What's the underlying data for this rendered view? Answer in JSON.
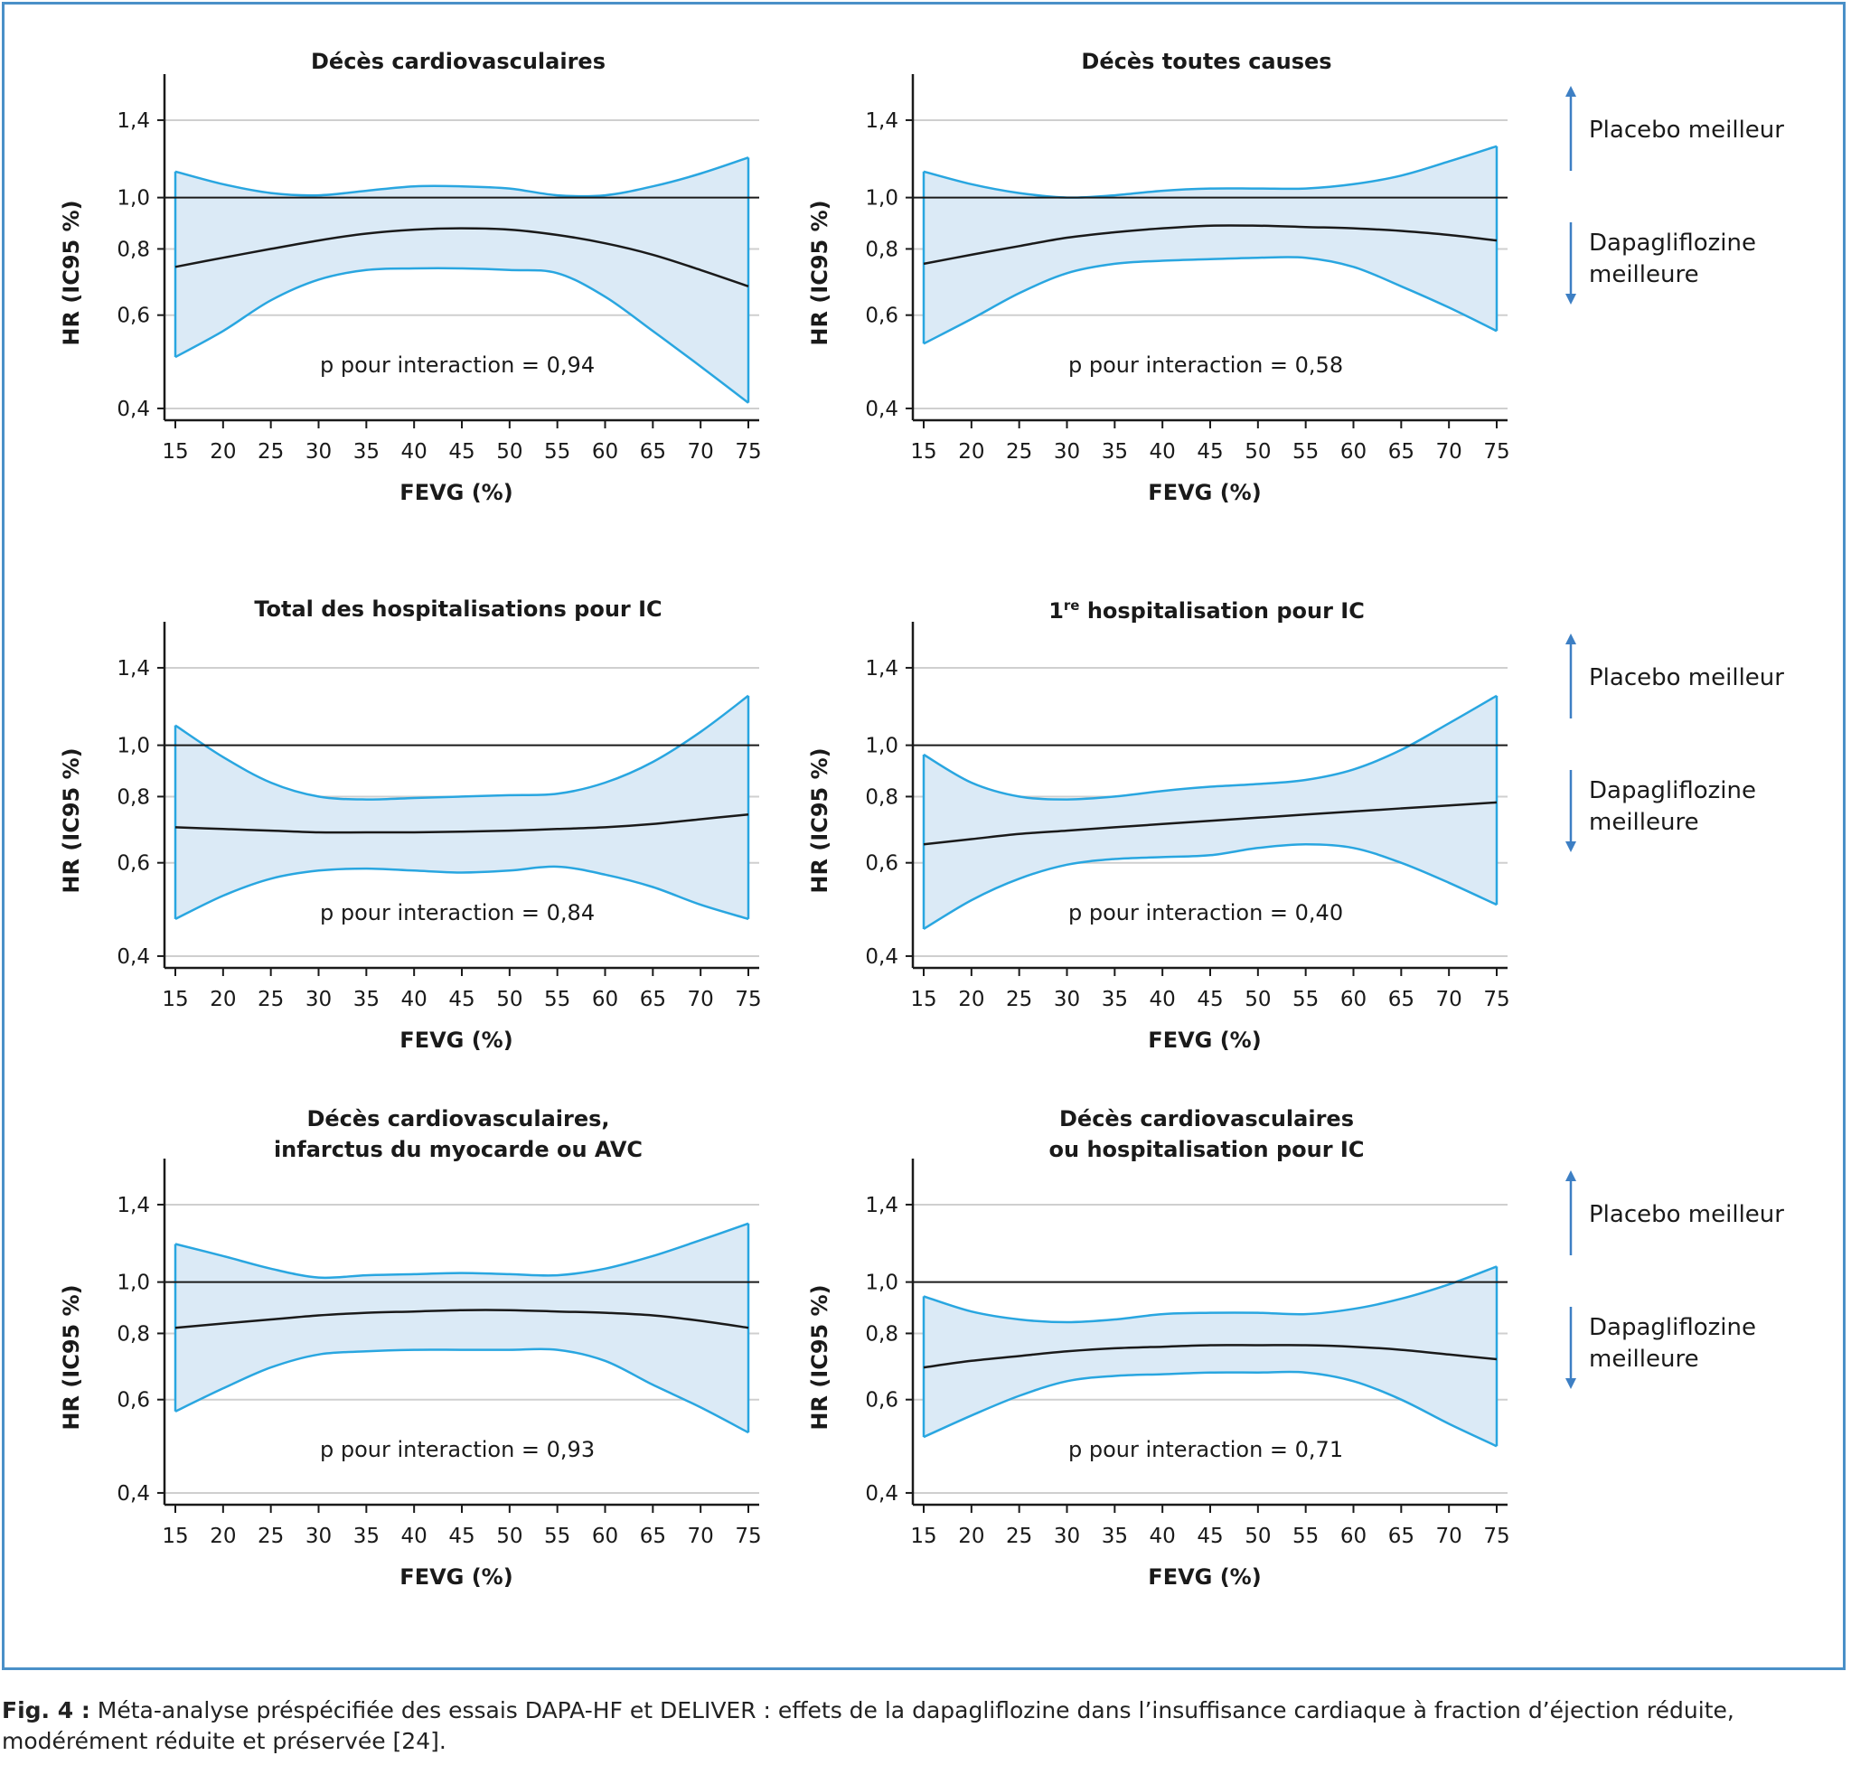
{
  "chart_data": [
    {
      "type": "line",
      "title": "Décès cardiovasculaires",
      "subtitle": "",
      "xlabel": "FEVG (%)",
      "ylabel": "HR (IC95 %)",
      "xlim": [
        15,
        75
      ],
      "ylim": [
        0.4,
        1.4
      ],
      "yscale": "log",
      "xticks": [
        15,
        20,
        25,
        30,
        35,
        40,
        45,
        50,
        55,
        60,
        65,
        70,
        75
      ],
      "yticks": [
        "0,4",
        "0,6",
        "0,8",
        "1,0",
        "1,4"
      ],
      "reference_line": 1.0,
      "annotation": "p  pour interaction = 0,94",
      "series": [
        {
          "x": [
            15,
            20,
            25,
            30,
            35,
            40,
            45,
            50,
            55,
            60,
            65,
            70,
            75
          ],
          "hr": [
            0.74,
            0.77,
            0.8,
            0.83,
            0.855,
            0.87,
            0.875,
            0.87,
            0.85,
            0.82,
            0.78,
            0.73,
            0.68
          ],
          "upper": [
            1.12,
            1.06,
            1.02,
            1.01,
            1.03,
            1.05,
            1.05,
            1.04,
            1.01,
            1.01,
            1.05,
            1.11,
            1.19
          ],
          "lower": [
            0.5,
            0.56,
            0.64,
            0.7,
            0.73,
            0.735,
            0.735,
            0.73,
            0.72,
            0.65,
            0.56,
            0.48,
            0.41
          ]
        }
      ],
      "grid": true
    },
    {
      "type": "line",
      "title": "Décès toutes causes",
      "subtitle": "",
      "xlabel": "FEVG (%)",
      "ylabel": "HR (IC95 %)",
      "xlim": [
        15,
        75
      ],
      "ylim": [
        0.4,
        1.4
      ],
      "yscale": "log",
      "xticks": [
        15,
        20,
        25,
        30,
        35,
        40,
        45,
        50,
        55,
        60,
        65,
        70,
        75
      ],
      "yticks": [
        "0,4",
        "0,6",
        "0,8",
        "1,0",
        "1,4"
      ],
      "reference_line": 1.0,
      "annotation": "p  pour interaction = 0,58",
      "series": [
        {
          "x": [
            15,
            20,
            25,
            30,
            35,
            40,
            45,
            50,
            55,
            60,
            65,
            70,
            75
          ],
          "hr": [
            0.75,
            0.78,
            0.81,
            0.84,
            0.86,
            0.875,
            0.885,
            0.885,
            0.88,
            0.875,
            0.865,
            0.85,
            0.83
          ],
          "upper": [
            1.12,
            1.06,
            1.02,
            1.0,
            1.01,
            1.03,
            1.04,
            1.04,
            1.04,
            1.06,
            1.1,
            1.17,
            1.25
          ],
          "lower": [
            0.53,
            0.59,
            0.66,
            0.72,
            0.75,
            0.76,
            0.765,
            0.77,
            0.77,
            0.74,
            0.68,
            0.62,
            0.56
          ]
        }
      ],
      "grid": true
    },
    {
      "type": "line",
      "title": "Total des hospitalisations pour IC",
      "subtitle": "",
      "xlabel": "FEVG (%)",
      "ylabel": "HR (IC95 %)",
      "xlim": [
        15,
        75
      ],
      "ylim": [
        0.4,
        1.4
      ],
      "yscale": "log",
      "xticks": [
        15,
        20,
        25,
        30,
        35,
        40,
        45,
        50,
        55,
        60,
        65,
        70,
        75
      ],
      "yticks": [
        "0,4",
        "0,6",
        "0,8",
        "1,0",
        "1,4"
      ],
      "reference_line": 1.0,
      "annotation": "p  pour interaction = 0,84",
      "series": [
        {
          "x": [
            15,
            20,
            25,
            30,
            35,
            40,
            45,
            50,
            55,
            60,
            65,
            70,
            75
          ],
          "hr": [
            0.7,
            0.695,
            0.69,
            0.685,
            0.685,
            0.685,
            0.687,
            0.69,
            0.695,
            0.7,
            0.71,
            0.725,
            0.74
          ],
          "upper": [
            1.09,
            0.95,
            0.85,
            0.8,
            0.79,
            0.795,
            0.8,
            0.805,
            0.81,
            0.85,
            0.93,
            1.06,
            1.24
          ],
          "lower": [
            0.47,
            0.52,
            0.56,
            0.58,
            0.585,
            0.58,
            0.575,
            0.58,
            0.59,
            0.57,
            0.54,
            0.5,
            0.47
          ]
        }
      ],
      "grid": true
    },
    {
      "type": "line",
      "title": "1re hospitalisation pour IC",
      "subtitle": "",
      "xlabel": "FEVG (%)",
      "ylabel": "HR (IC95 %)",
      "xlim": [
        15,
        75
      ],
      "ylim": [
        0.4,
        1.4
      ],
      "yscale": "log",
      "xticks": [
        15,
        20,
        25,
        30,
        35,
        40,
        45,
        50,
        55,
        60,
        65,
        70,
        75
      ],
      "yticks": [
        "0,4",
        "0,6",
        "0,8",
        "1,0",
        "1,4"
      ],
      "reference_line": 1.0,
      "annotation": "p  pour interaction = 0,40",
      "series": [
        {
          "x": [
            15,
            20,
            25,
            30,
            35,
            40,
            45,
            50,
            55,
            60,
            65,
            70,
            75
          ],
          "hr": [
            0.65,
            0.665,
            0.68,
            0.69,
            0.7,
            0.71,
            0.72,
            0.73,
            0.74,
            0.75,
            0.76,
            0.77,
            0.78
          ],
          "upper": [
            0.96,
            0.85,
            0.8,
            0.79,
            0.8,
            0.82,
            0.835,
            0.845,
            0.86,
            0.9,
            0.98,
            1.1,
            1.24
          ],
          "lower": [
            0.45,
            0.51,
            0.56,
            0.595,
            0.61,
            0.615,
            0.62,
            0.64,
            0.65,
            0.64,
            0.6,
            0.55,
            0.5
          ]
        }
      ],
      "grid": true
    },
    {
      "type": "line",
      "title": "Décès cardiovasculaires,",
      "subtitle": "infarctus du myocarde ou AVC",
      "xlabel": "FEVG (%)",
      "ylabel": "HR (IC95 %)",
      "xlim": [
        15,
        75
      ],
      "ylim": [
        0.4,
        1.4
      ],
      "yscale": "log",
      "xticks": [
        15,
        20,
        25,
        30,
        35,
        40,
        45,
        50,
        55,
        60,
        65,
        70,
        75
      ],
      "yticks": [
        "0,4",
        "0,6",
        "0,8",
        "1,0",
        "1,4"
      ],
      "reference_line": 1.0,
      "annotation": "p  pour interaction = 0,93",
      "series": [
        {
          "x": [
            15,
            20,
            25,
            30,
            35,
            40,
            45,
            50,
            55,
            60,
            65,
            70,
            75
          ],
          "hr": [
            0.82,
            0.835,
            0.85,
            0.865,
            0.875,
            0.88,
            0.885,
            0.885,
            0.88,
            0.875,
            0.865,
            0.845,
            0.82
          ],
          "upper": [
            1.18,
            1.12,
            1.06,
            1.02,
            1.03,
            1.035,
            1.04,
            1.035,
            1.03,
            1.06,
            1.12,
            1.2,
            1.29
          ],
          "lower": [
            0.57,
            0.63,
            0.69,
            0.73,
            0.74,
            0.745,
            0.745,
            0.745,
            0.745,
            0.71,
            0.64,
            0.58,
            0.52
          ]
        }
      ],
      "grid": true
    },
    {
      "type": "line",
      "title": "Décès cardiovasculaires",
      "subtitle": "ou hospitalisation pour IC",
      "xlabel": "FEVG (%)",
      "ylabel": "HR (IC95 %)",
      "xlim": [
        15,
        75
      ],
      "ylim": [
        0.4,
        1.4
      ],
      "yscale": "log",
      "xticks": [
        15,
        20,
        25,
        30,
        35,
        40,
        45,
        50,
        55,
        60,
        65,
        70,
        75
      ],
      "yticks": [
        "0,4",
        "0,6",
        "0,8",
        "1,0",
        "1,4"
      ],
      "reference_line": 1.0,
      "annotation": "p  pour interaction = 0,71",
      "series": [
        {
          "x": [
            15,
            20,
            25,
            30,
            35,
            40,
            45,
            50,
            55,
            60,
            65,
            70,
            75
          ],
          "hr": [
            0.69,
            0.71,
            0.725,
            0.74,
            0.75,
            0.755,
            0.76,
            0.76,
            0.76,
            0.755,
            0.745,
            0.73,
            0.715
          ],
          "upper": [
            0.94,
            0.88,
            0.85,
            0.84,
            0.85,
            0.87,
            0.875,
            0.875,
            0.87,
            0.89,
            0.93,
            0.99,
            1.07
          ],
          "lower": [
            0.51,
            0.56,
            0.61,
            0.65,
            0.665,
            0.67,
            0.675,
            0.675,
            0.675,
            0.65,
            0.6,
            0.54,
            0.49
          ]
        }
      ],
      "grid": true
    }
  ],
  "side_labels": {
    "placebo": "Placebo meilleur",
    "dapa_line1": "Dapagliflozine",
    "dapa_line2": "meilleure"
  },
  "caption": {
    "label": "Fig. 4 :",
    "text": "Méta-analyse préspécifiée des essais DAPA-HF et DELIVER : effets de la dapagliflozine dans l’insuffisance cardiaque à fraction d’éjection réduite, modérément réduite et préservée [24]."
  },
  "colors": {
    "band_fill": "#dbeaf6",
    "band_edge": "#29a6e0",
    "hr_line": "#1a1a1a",
    "grid": "#cfcfcf",
    "frame": "#4a90c8",
    "arrow": "#3d7fc4"
  }
}
